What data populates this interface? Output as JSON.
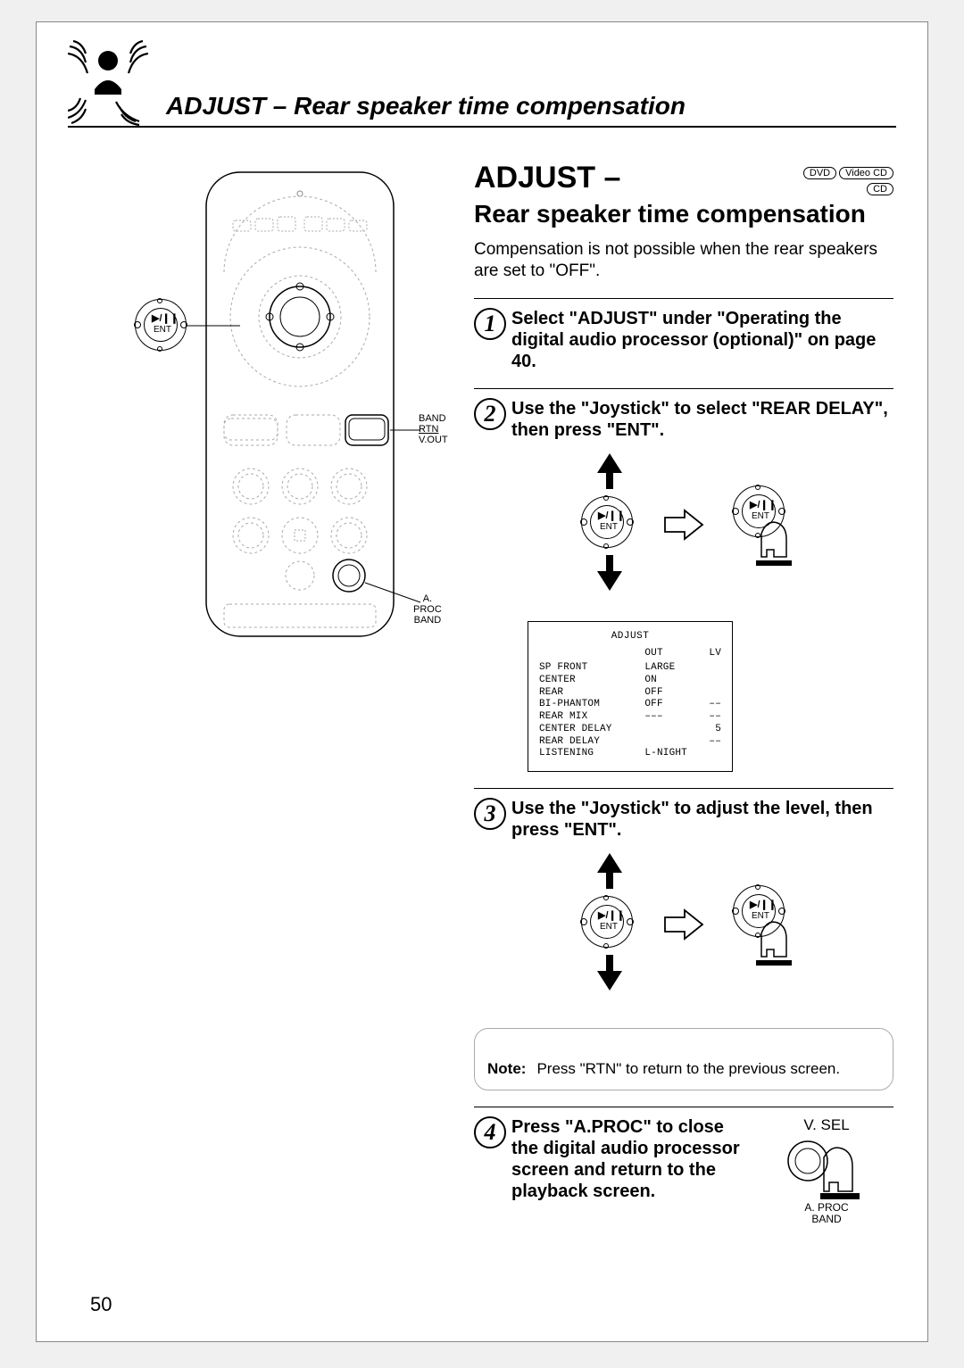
{
  "header_title": "ADJUST – Rear speaker time compensation",
  "section_title_main": "ADJUST –",
  "section_title_sub": "Rear speaker time compensation",
  "badges": {
    "dvd": "DVD",
    "videocd": "Video CD",
    "cd": "CD"
  },
  "intro": "Compensation is not possible when the rear speakers are set to \"OFF\".",
  "steps": {
    "s1": "Select \"ADJUST\" under \"Operating the digital audio processor (optional)\" on page 40.",
    "s2": "Use the \"Joystick\" to select \"REAR DELAY\", then press \"ENT\".",
    "s3": "Use the \"Joystick\" to adjust the level, then press \"ENT\".",
    "s4": "Press \"A.PROC\" to close the digital audio processor screen and return to the playback screen."
  },
  "joystick": {
    "sym": "▶/❙❙",
    "ent": "ENT"
  },
  "remote_labels": {
    "ent_knob_sym": "▶/❙❙",
    "ent_knob_text": "ENT",
    "band": "BAND",
    "rtn": "RTN",
    "vout": "V.OUT",
    "aproc": "A. PROC",
    "band2": "BAND"
  },
  "menu": {
    "title": "ADJUST",
    "head_out": "OUT",
    "head_lv": "LV",
    "rows": [
      {
        "label": "SP FRONT",
        "out": "LARGE",
        "lv": ""
      },
      {
        "label": "CENTER",
        "out": "ON",
        "lv": ""
      },
      {
        "label": "REAR",
        "out": "OFF",
        "lv": ""
      },
      {
        "label": "BI-PHANTOM",
        "out": "OFF",
        "lv": "––"
      },
      {
        "label": "REAR MIX",
        "out": "–––",
        "lv": "––"
      },
      {
        "label": "CENTER DELAY",
        "out": "",
        "lv": "5"
      },
      {
        "label": "REAR DELAY",
        "out": "",
        "lv": "––"
      },
      {
        "label": "LISTENING",
        "out": "L-NIGHT",
        "lv": ""
      }
    ]
  },
  "note": {
    "label": "Note:",
    "text": "Press \"RTN\" to return to the previous screen."
  },
  "step4_illus": {
    "vsel": "V. SEL",
    "aproc": "A. PROC",
    "band": "BAND"
  },
  "page_number": "50",
  "colors": {
    "page_bg": "#ffffff",
    "outer_bg": "#f0f0f0",
    "line": "#000000",
    "note_border": "#aaaaaa"
  },
  "fonts": {
    "header_size_pt": 21,
    "section_main_pt": 26,
    "section_sub_pt": 21,
    "body_pt": 14,
    "step_pt": 15,
    "menu_pt": 8,
    "pagenum_pt": 17
  }
}
